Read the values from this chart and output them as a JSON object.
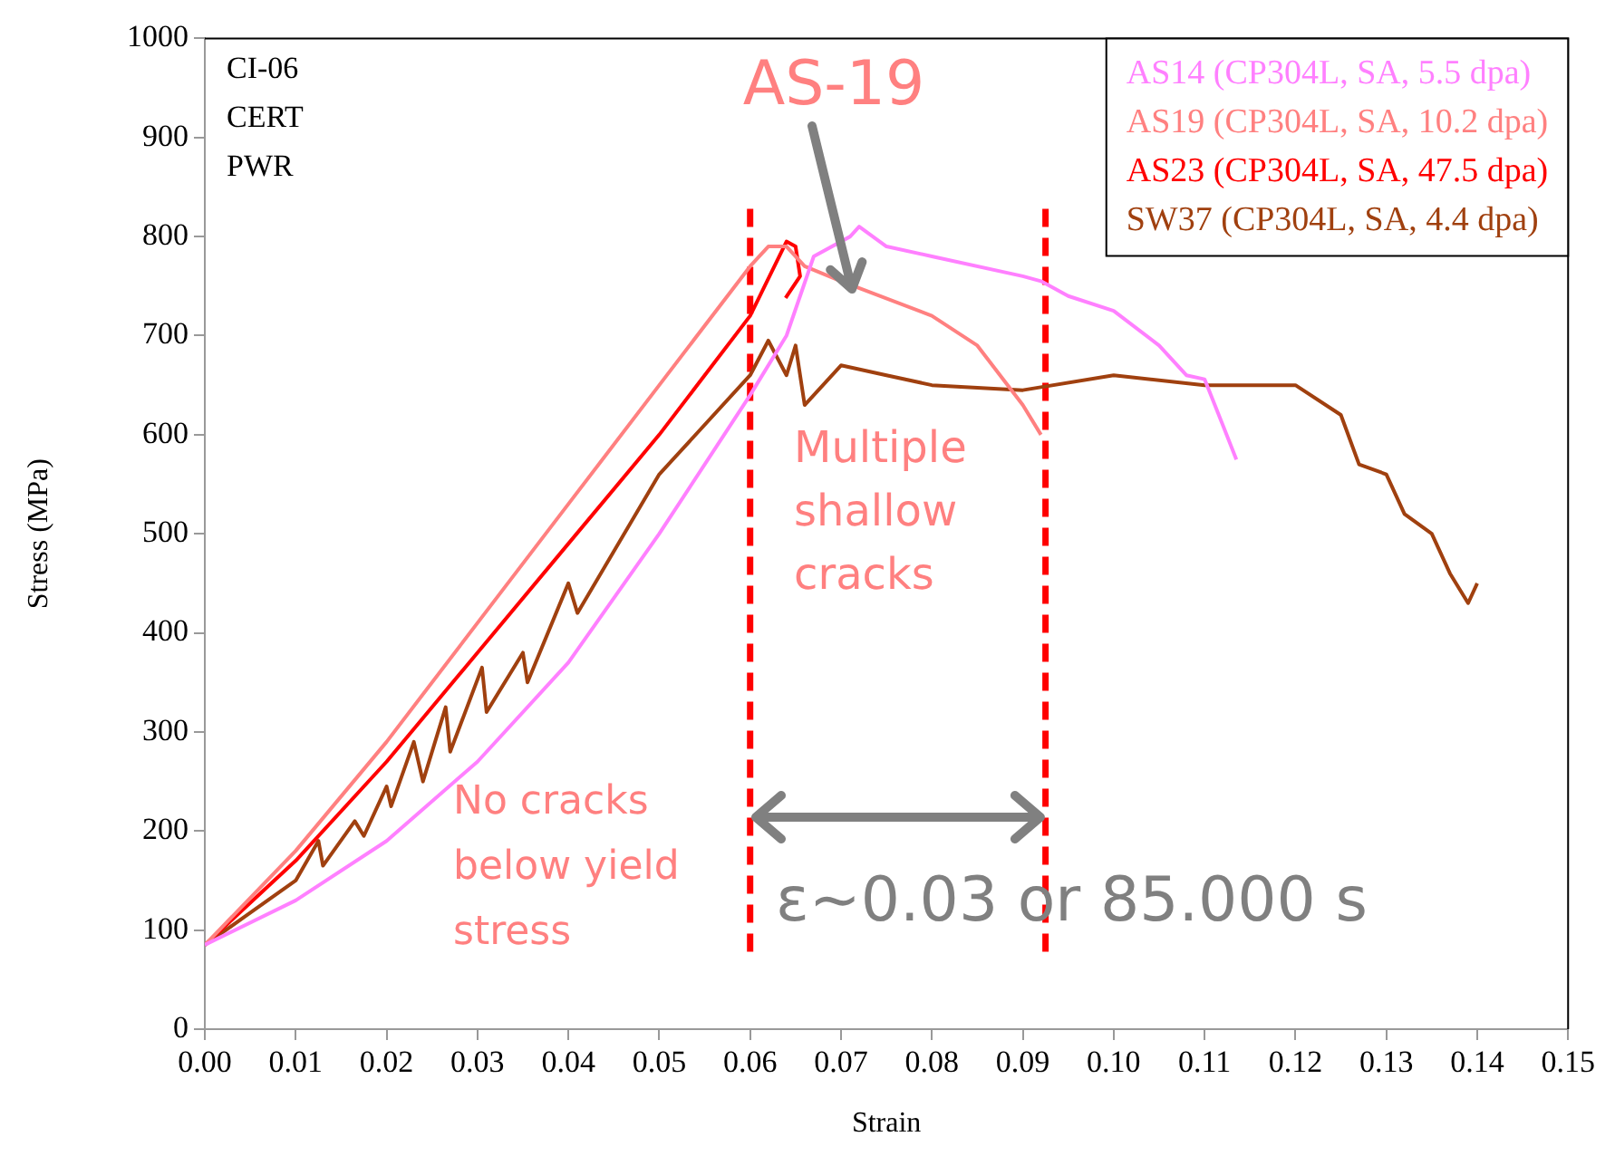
{
  "chart_data": {
    "type": "line",
    "xlabel": "Strain",
    "ylabel": "Stress (MPa)",
    "xlim": [
      0,
      0.15
    ],
    "xticks": [
      {
        "value": 0,
        "label": "0.00"
      },
      0.01,
      0.02,
      0.03,
      0.04,
      0.05,
      0.06,
      0.07,
      0.08,
      0.09,
      {
        "value": 0.1,
        "label": "0.10"
      },
      0.11,
      0.12,
      0.13,
      0.14,
      0.15
    ],
    "ylim": [
      0,
      1000
    ],
    "yticks": [
      0,
      100,
      200,
      300,
      400,
      500,
      600,
      700,
      800,
      900,
      1000
    ],
    "grid": false,
    "legend": "top right",
    "marker": "none",
    "line_style": "solid",
    "series": [
      {
        "name": "AS14 (CP304L, SA, 5.5 dpa)",
        "color": "#ff80ff",
        "x": [
          0,
          0.01,
          0.02,
          0.03,
          0.04,
          0.05,
          0.06,
          0.064,
          0.067,
          0.071,
          0.072,
          0.075,
          0.08,
          0.09,
          0.092,
          0.095,
          0.1,
          0.105,
          0.108,
          0.11,
          0.112,
          0.1135
        ],
        "values": [
          85,
          130,
          190,
          270,
          370,
          500,
          640,
          700,
          780,
          800,
          810,
          790,
          780,
          760,
          755,
          740,
          725,
          690,
          660,
          656,
          610,
          575
        ]
      },
      {
        "name": "AS19 (CP304L, SA, 10.2 dpa)",
        "color": "#ff8080",
        "x": [
          0,
          0.01,
          0.02,
          0.03,
          0.04,
          0.05,
          0.06,
          0.062,
          0.064,
          0.066,
          0.07,
          0.08,
          0.085,
          0.09,
          0.092
        ],
        "values": [
          85,
          180,
          290,
          410,
          530,
          650,
          770,
          790,
          790,
          770,
          755,
          720,
          690,
          630,
          600
        ]
      },
      {
        "name": "AS23 (CP304L, SA, 47.5 dpa)",
        "color": "#ff0000",
        "x": [
          0,
          0.01,
          0.02,
          0.03,
          0.04,
          0.05,
          0.06,
          0.064,
          0.065,
          0.0655,
          0.0639
        ],
        "values": [
          85,
          170,
          270,
          380,
          490,
          600,
          720,
          795,
          790,
          760,
          738
        ]
      },
      {
        "name": "SW37 (CP304L, SA, 4.4 dpa)",
        "color": "#a0400f",
        "x": [
          0,
          0.01,
          0.0125,
          0.013,
          0.0165,
          0.0175,
          0.02,
          0.0205,
          0.023,
          0.024,
          0.0265,
          0.027,
          0.0305,
          0.031,
          0.035,
          0.0355,
          0.04,
          0.041,
          0.05,
          0.06,
          0.062,
          0.064,
          0.065,
          0.066,
          0.07,
          0.075,
          0.08,
          0.09,
          0.1,
          0.11,
          0.12,
          0.125,
          0.127,
          0.13,
          0.132,
          0.135,
          0.137,
          0.139,
          0.14
        ],
        "values": [
          85,
          150,
          190,
          165,
          210,
          195,
          245,
          225,
          290,
          250,
          325,
          280,
          365,
          320,
          380,
          350,
          450,
          420,
          560,
          660,
          695,
          660,
          690,
          630,
          670,
          660,
          650,
          645,
          660,
          650,
          650,
          620,
          570,
          560,
          520,
          500,
          460,
          430,
          450
        ]
      }
    ],
    "ref_lines": [
      {
        "axis": "x",
        "value": 0.06,
        "color": "#ff0000",
        "line_style": "dashed"
      },
      {
        "axis": "x",
        "value": 0.0925,
        "color": "#ff0000",
        "line_style": "dashed"
      }
    ],
    "annotations": [
      "CI-06",
      "CERT",
      "PWR",
      "Multiple shallow cracks",
      "No cracks below yield stress",
      "ε~0.03 or 85.000 s",
      {
        "text": "AS-19",
        "x": 0.0712,
        "y": 747
      }
    ]
  }
}
